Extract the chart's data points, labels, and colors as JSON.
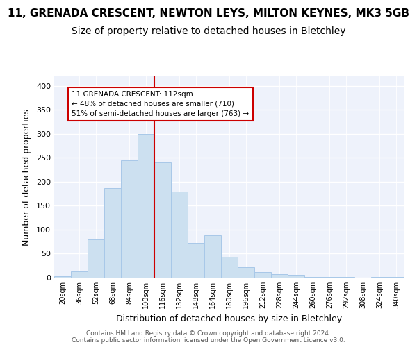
{
  "title": "11, GRENADA CRESCENT, NEWTON LEYS, MILTON KEYNES, MK3 5GB",
  "subtitle": "Size of property relative to detached houses in Bletchley",
  "xlabel": "Distribution of detached houses by size in Bletchley",
  "ylabel": "Number of detached properties",
  "bin_labels": [
    "20sqm",
    "36sqm",
    "52sqm",
    "68sqm",
    "84sqm",
    "100sqm",
    "116sqm",
    "132sqm",
    "148sqm",
    "164sqm",
    "180sqm",
    "196sqm",
    "212sqm",
    "228sqm",
    "244sqm",
    "260sqm",
    "276sqm",
    "292sqm",
    "308sqm",
    "324sqm",
    "340sqm"
  ],
  "bar_heights": [
    3,
    13,
    80,
    187,
    245,
    300,
    240,
    180,
    73,
    88,
    44,
    22,
    11,
    7,
    6,
    2,
    2,
    1,
    0,
    2,
    1
  ],
  "bar_color": "#cce0f0",
  "bar_edge_color": "#a8c8e8",
  "vline_x": 5.5,
  "vline_color": "#cc0000",
  "annotation_text": "11 GRENADA CRESCENT: 112sqm\n← 48% of detached houses are smaller (710)\n51% of semi-detached houses are larger (763) →",
  "annotation_box_color": "#cc0000",
  "footer_text": "Contains HM Land Registry data © Crown copyright and database right 2024.\nContains public sector information licensed under the Open Government Licence v3.0.",
  "bg_color": "#eef2fb",
  "ylim": [
    0,
    420
  ],
  "yticks": [
    0,
    50,
    100,
    150,
    200,
    250,
    300,
    350,
    400
  ],
  "title_fontsize": 11,
  "subtitle_fontsize": 10,
  "ylabel_fontsize": 9,
  "xlabel_fontsize": 9
}
